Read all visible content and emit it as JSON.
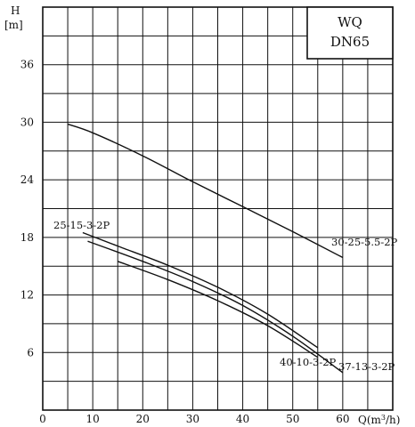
{
  "chart_data": {
    "type": "line",
    "title_box": [
      "WQ",
      "DN65"
    ],
    "ylabel": "H",
    "ylabel_unit": "[m]",
    "xlabel": "Q(m³/h)",
    "xlim": [
      0,
      70
    ],
    "ylim": [
      0,
      42
    ],
    "x_ticks": [
      0,
      10,
      20,
      30,
      40,
      50,
      60
    ],
    "y_ticks": [
      6,
      12,
      18,
      24,
      30,
      36
    ],
    "grid": true,
    "series": [
      {
        "name": "30-25-5.5-2P",
        "x": [
          5,
          10,
          20,
          30,
          40,
          50,
          60
        ],
        "y": [
          29.8,
          28.9,
          26.5,
          23.8,
          21.2,
          18.6,
          15.9
        ]
      },
      {
        "name": "25-15-3-2P",
        "x": [
          8,
          15,
          25,
          35,
          45,
          55
        ],
        "y": [
          18.5,
          17.1,
          15.1,
          12.8,
          10.0,
          6.5
        ]
      },
      {
        "name": "37-13-3-2P",
        "x": [
          9,
          20,
          30,
          40,
          50,
          60
        ],
        "y": [
          17.6,
          15.5,
          13.4,
          10.9,
          7.7,
          3.9
        ]
      },
      {
        "name": "40-10-3-2P",
        "x": [
          15,
          25,
          35,
          45,
          55
        ],
        "y": [
          15.5,
          13.6,
          11.4,
          8.8,
          5.5
        ]
      }
    ]
  }
}
